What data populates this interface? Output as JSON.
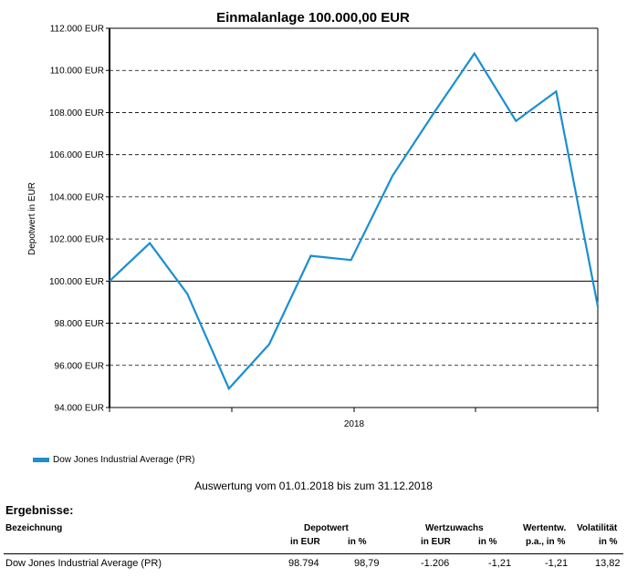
{
  "chart_data": {
    "type": "line",
    "title": "Einmalanlage 100.000,00 EUR",
    "ylabel": "Depotwert in EUR",
    "xlabel": "",
    "x_tick_labels": [
      "2018"
    ],
    "y_ticks": [
      94000,
      96000,
      98000,
      100000,
      102000,
      104000,
      106000,
      108000,
      110000,
      112000
    ],
    "y_tick_labels": [
      "94.000 EUR",
      "96.000 EUR",
      "98.000 EUR",
      "100.000 EUR",
      "102.000 EUR",
      "104.000 EUR",
      "106.000 EUR",
      "108.000 EUR",
      "110.000 EUR",
      "112.000 EUR"
    ],
    "ylim": [
      94000,
      112000
    ],
    "grid": "horizontal dashed",
    "legend_position": "bottom-left",
    "x": [
      "2018-01-01",
      "2018-01-31",
      "2018-02-28",
      "2018-03-31",
      "2018-04-30",
      "2018-05-31",
      "2018-06-30",
      "2018-07-31",
      "2018-08-31",
      "2018-09-30",
      "2018-10-31",
      "2018-11-30",
      "2018-12-31"
    ],
    "series": [
      {
        "name": "Dow Jones Industrial Average (PR)",
        "color": "#1a8fd1",
        "values": [
          100000,
          101800,
          99400,
          94900,
          97000,
          101200,
          101000,
          105000,
          108000,
          110800,
          107600,
          109000,
          98800
        ]
      }
    ]
  },
  "legend": {
    "label": "Dow Jones Industrial Average (PR)"
  },
  "period_text": "Auswertung vom 01.01.2018 bis zum 31.12.2018",
  "results": {
    "heading": "Ergebnisse:",
    "headers": {
      "bezeichnung": "Bezeichnung",
      "depotwert": "Depotwert",
      "depot_eur": "in EUR",
      "depot_pct": "in %",
      "wertzuwachs": "Wertzuwachs",
      "wz_eur": "in EUR",
      "wz_pct": "in %",
      "wertentw": "Wertentw.",
      "wertentw_sub": "p.a., in %",
      "volatilitaet": "Volatilität",
      "vol_sub": "in %"
    },
    "row": {
      "name": "Dow Jones Industrial Average (PR)",
      "depot_eur": "98.794",
      "depot_pct": "98,79",
      "wz_eur": "-1.206",
      "wz_pct": "-1,21",
      "wertentw": "-1,21",
      "vol": "13,82"
    }
  }
}
